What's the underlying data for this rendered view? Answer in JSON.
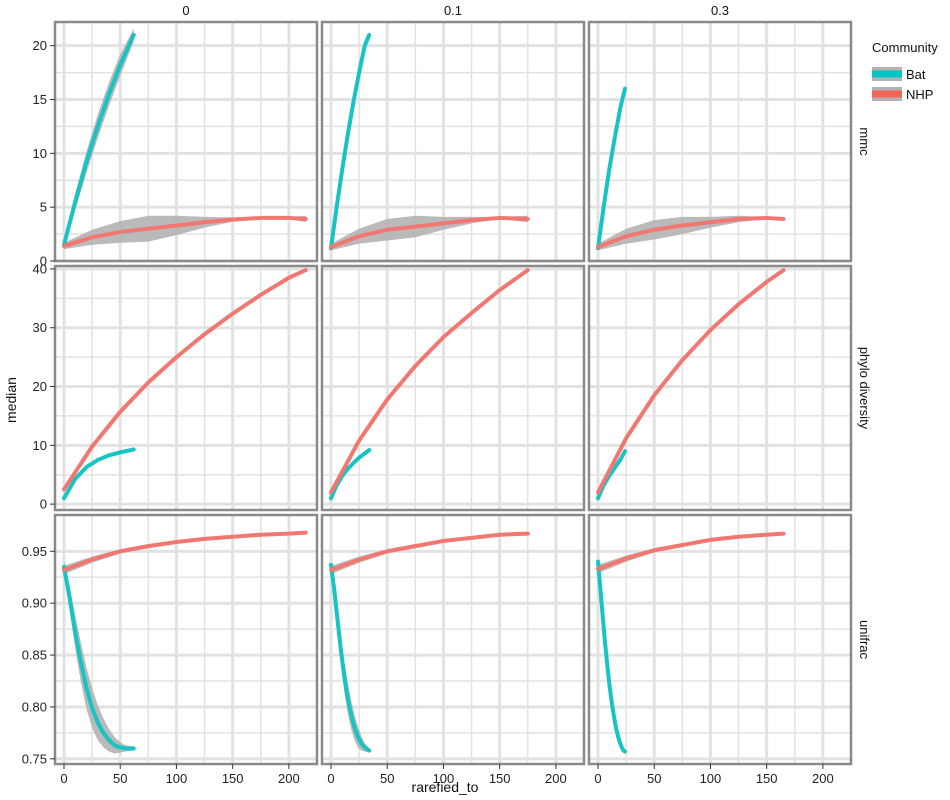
{
  "chart_data": {
    "type": "line",
    "xlabel": "rarefied_to",
    "ylabel": "median",
    "col_labels": [
      "0",
      "0.1",
      "0.3"
    ],
    "row_labels": [
      "mmc",
      "phylo diversity",
      "unifrac"
    ],
    "xlim": [
      -8,
      225
    ],
    "x_ticks": [
      0,
      50,
      100,
      150,
      200
    ],
    "rows": [
      {
        "ylim": [
          0,
          22.2
        ],
        "y_ticks": [
          0,
          5,
          10,
          15,
          20
        ],
        "y_tick_labels": [
          "0",
          "5",
          "10",
          "15",
          "20"
        ]
      },
      {
        "ylim": [
          -1,
          40.5
        ],
        "y_ticks": [
          0,
          10,
          20,
          30,
          40
        ],
        "y_tick_labels": [
          "0",
          "10",
          "20",
          "30",
          "40"
        ]
      },
      {
        "ylim": [
          0.745,
          0.985
        ],
        "y_ticks": [
          0.75,
          0.8,
          0.85,
          0.9,
          0.95
        ],
        "y_tick_labels": [
          "0.75",
          "0.80",
          "0.85",
          "0.90",
          "0.95"
        ]
      }
    ],
    "panels": [
      {
        "row": 0,
        "col": 0,
        "series": [
          {
            "name": "Bat",
            "x": [
              0,
              10,
              20,
              30,
              40,
              50,
              62
            ],
            "y": [
              1.5,
              5.5,
              9.2,
              12.5,
              15.5,
              18.2,
              21.0
            ],
            "band": [
              0.5,
              0.8,
              1.0,
              1.1,
              1.1,
              1.0,
              0.6
            ]
          },
          {
            "name": "NHP",
            "x": [
              0,
              25,
              50,
              75,
              100,
              125,
              150,
              175,
              200,
              215
            ],
            "y": [
              1.4,
              2.2,
              2.7,
              3.0,
              3.3,
              3.6,
              3.85,
              4.0,
              4.0,
              3.9
            ],
            "band": [
              0.3,
              0.7,
              1.0,
              1.2,
              0.9,
              0.5,
              0.2,
              0.1,
              0.1,
              0.3
            ]
          }
        ]
      },
      {
        "row": 0,
        "col": 1,
        "series": [
          {
            "name": "Bat",
            "x": [
              0,
              5,
              10,
              15,
              20,
              25,
              30,
              34
            ],
            "y": [
              1.2,
              5.0,
              8.5,
              11.8,
              14.8,
              17.5,
              20.0,
              21.0
            ],
            "band": [
              0.3,
              0.4,
              0.5,
              0.5,
              0.5,
              0.4,
              0.3,
              0.3
            ]
          },
          {
            "name": "NHP",
            "x": [
              0,
              25,
              50,
              75,
              100,
              125,
              150,
              175
            ],
            "y": [
              1.3,
              2.3,
              2.9,
              3.2,
              3.5,
              3.8,
              4.0,
              3.9
            ],
            "band": [
              0.3,
              0.7,
              1.0,
              1.0,
              0.6,
              0.3,
              0.1,
              0.3
            ]
          }
        ]
      },
      {
        "row": 0,
        "col": 2,
        "series": [
          {
            "name": "Bat",
            "x": [
              0,
              5,
              10,
              15,
              20,
              24
            ],
            "y": [
              1.2,
              5.0,
              8.5,
              11.5,
              14.3,
              16.0
            ],
            "band": [
              0.3,
              0.3,
              0.3,
              0.3,
              0.3,
              0.3
            ]
          },
          {
            "name": "NHP",
            "x": [
              0,
              25,
              50,
              75,
              100,
              125,
              150,
              165
            ],
            "y": [
              1.3,
              2.3,
              2.9,
              3.3,
              3.6,
              3.9,
              4.0,
              3.9
            ],
            "band": [
              0.3,
              0.7,
              0.9,
              0.8,
              0.5,
              0.3,
              0.1,
              0.2
            ]
          }
        ]
      },
      {
        "row": 1,
        "col": 0,
        "series": [
          {
            "name": "Bat",
            "x": [
              0,
              10,
              20,
              30,
              40,
              50,
              62
            ],
            "y": [
              1.0,
              4.3,
              6.3,
              7.5,
              8.3,
              8.8,
              9.3
            ],
            "band": [
              0.2,
              0.2,
              0.2,
              0.2,
              0.2,
              0.2,
              0.2
            ]
          },
          {
            "name": "NHP",
            "x": [
              0,
              25,
              50,
              75,
              100,
              125,
              150,
              175,
              200,
              215
            ],
            "y": [
              2.5,
              9.8,
              15.7,
              20.7,
              25.0,
              28.9,
              32.4,
              35.6,
              38.5,
              39.8
            ],
            "band": [
              0.3,
              0.3,
              0.3,
              0.3,
              0.3,
              0.3,
              0.3,
              0.3,
              0.3,
              0.3
            ]
          }
        ]
      },
      {
        "row": 1,
        "col": 1,
        "series": [
          {
            "name": "Bat",
            "x": [
              0,
              5,
              10,
              15,
              20,
              25,
              34
            ],
            "y": [
              1.0,
              3.2,
              4.8,
              6.0,
              7.0,
              7.9,
              9.2
            ],
            "band": [
              0.2,
              0.2,
              0.2,
              0.2,
              0.2,
              0.2,
              0.2
            ]
          },
          {
            "name": "NHP",
            "x": [
              0,
              25,
              50,
              75,
              100,
              125,
              150,
              175
            ],
            "y": [
              2.0,
              10.8,
              17.8,
              23.5,
              28.4,
              32.5,
              36.4,
              39.8
            ],
            "band": [
              0.3,
              0.3,
              0.3,
              0.3,
              0.3,
              0.3,
              0.3,
              0.3
            ]
          }
        ]
      },
      {
        "row": 1,
        "col": 2,
        "series": [
          {
            "name": "Bat",
            "x": [
              0,
              5,
              10,
              15,
              20,
              24
            ],
            "y": [
              1.0,
              3.2,
              4.8,
              6.2,
              7.6,
              9.0
            ],
            "band": [
              0.2,
              0.2,
              0.2,
              0.2,
              0.2,
              0.2
            ]
          },
          {
            "name": "NHP",
            "x": [
              0,
              25,
              50,
              75,
              100,
              125,
              150,
              165
            ],
            "y": [
              2.0,
              11.2,
              18.5,
              24.5,
              29.6,
              34.0,
              37.8,
              39.8
            ],
            "band": [
              0.3,
              0.3,
              0.3,
              0.3,
              0.3,
              0.3,
              0.3,
              0.3
            ]
          }
        ]
      },
      {
        "row": 2,
        "col": 0,
        "series": [
          {
            "name": "Bat",
            "x": [
              0,
              5,
              10,
              15,
              20,
              25,
              30,
              35,
              40,
              45,
              50,
              55,
              62
            ],
            "y": [
              0.935,
              0.905,
              0.872,
              0.843,
              0.818,
              0.799,
              0.785,
              0.775,
              0.768,
              0.763,
              0.761,
              0.76,
              0.76
            ],
            "band": [
              0.006,
              0.012,
              0.016,
              0.019,
              0.02,
              0.019,
              0.017,
              0.014,
              0.011,
              0.008,
              0.005,
              0.003,
              0.002
            ]
          },
          {
            "name": "NHP",
            "x": [
              0,
              25,
              50,
              75,
              100,
              125,
              150,
              175,
              200,
              215
            ],
            "y": [
              0.932,
              0.942,
              0.95,
              0.955,
              0.959,
              0.962,
              0.964,
              0.966,
              0.967,
              0.968
            ],
            "band": [
              0.004,
              0.003,
              0.002,
              0.002,
              0.001,
              0.001,
              0.001,
              0.001,
              0.001,
              0.001
            ]
          }
        ]
      },
      {
        "row": 2,
        "col": 1,
        "series": [
          {
            "name": "Bat",
            "x": [
              0,
              3,
              6,
              9,
              12,
              15,
              18,
              21,
              24,
              27,
              30,
              34
            ],
            "y": [
              0.937,
              0.912,
              0.882,
              0.853,
              0.828,
              0.808,
              0.792,
              0.78,
              0.771,
              0.765,
              0.761,
              0.758
            ],
            "band": [
              0.004,
              0.008,
              0.011,
              0.014,
              0.015,
              0.015,
              0.014,
              0.012,
              0.01,
              0.007,
              0.004,
              0.002
            ]
          },
          {
            "name": "NHP",
            "x": [
              0,
              25,
              50,
              75,
              100,
              125,
              150,
              175
            ],
            "y": [
              0.932,
              0.942,
              0.95,
              0.955,
              0.96,
              0.963,
              0.966,
              0.967
            ],
            "band": [
              0.004,
              0.003,
              0.002,
              0.002,
              0.001,
              0.001,
              0.001,
              0.001
            ]
          }
        ]
      },
      {
        "row": 2,
        "col": 2,
        "series": [
          {
            "name": "Bat",
            "x": [
              0,
              2,
              4,
              6,
              8,
              10,
              12,
              14,
              16,
              18,
              20,
              22,
              24
            ],
            "y": [
              0.94,
              0.915,
              0.89,
              0.865,
              0.843,
              0.823,
              0.806,
              0.792,
              0.78,
              0.771,
              0.764,
              0.759,
              0.757
            ],
            "band": [
              0.004,
              0.007,
              0.01,
              0.011,
              0.012,
              0.012,
              0.011,
              0.01,
              0.008,
              0.006,
              0.004,
              0.003,
              0.002
            ]
          },
          {
            "name": "NHP",
            "x": [
              0,
              25,
              50,
              75,
              100,
              125,
              150,
              165
            ],
            "y": [
              0.933,
              0.943,
              0.951,
              0.956,
              0.961,
              0.964,
              0.966,
              0.967
            ],
            "band": [
              0.004,
              0.003,
              0.002,
              0.002,
              0.001,
              0.001,
              0.001,
              0.001
            ]
          }
        ]
      }
    ],
    "legend": {
      "title": "Community",
      "position": "right",
      "items": [
        {
          "name": "Bat",
          "color": "#00c5c5"
        },
        {
          "name": "NHP",
          "color": "#f2665a"
        }
      ]
    },
    "colors": {
      "Bat": "#17c3c3",
      "NHP": "#f07870",
      "band": "#b3b3b3",
      "panel_background": "#ffffff",
      "grid": "#e2e2e2",
      "panel_border": "#8a8a8a"
    },
    "grid": true
  }
}
